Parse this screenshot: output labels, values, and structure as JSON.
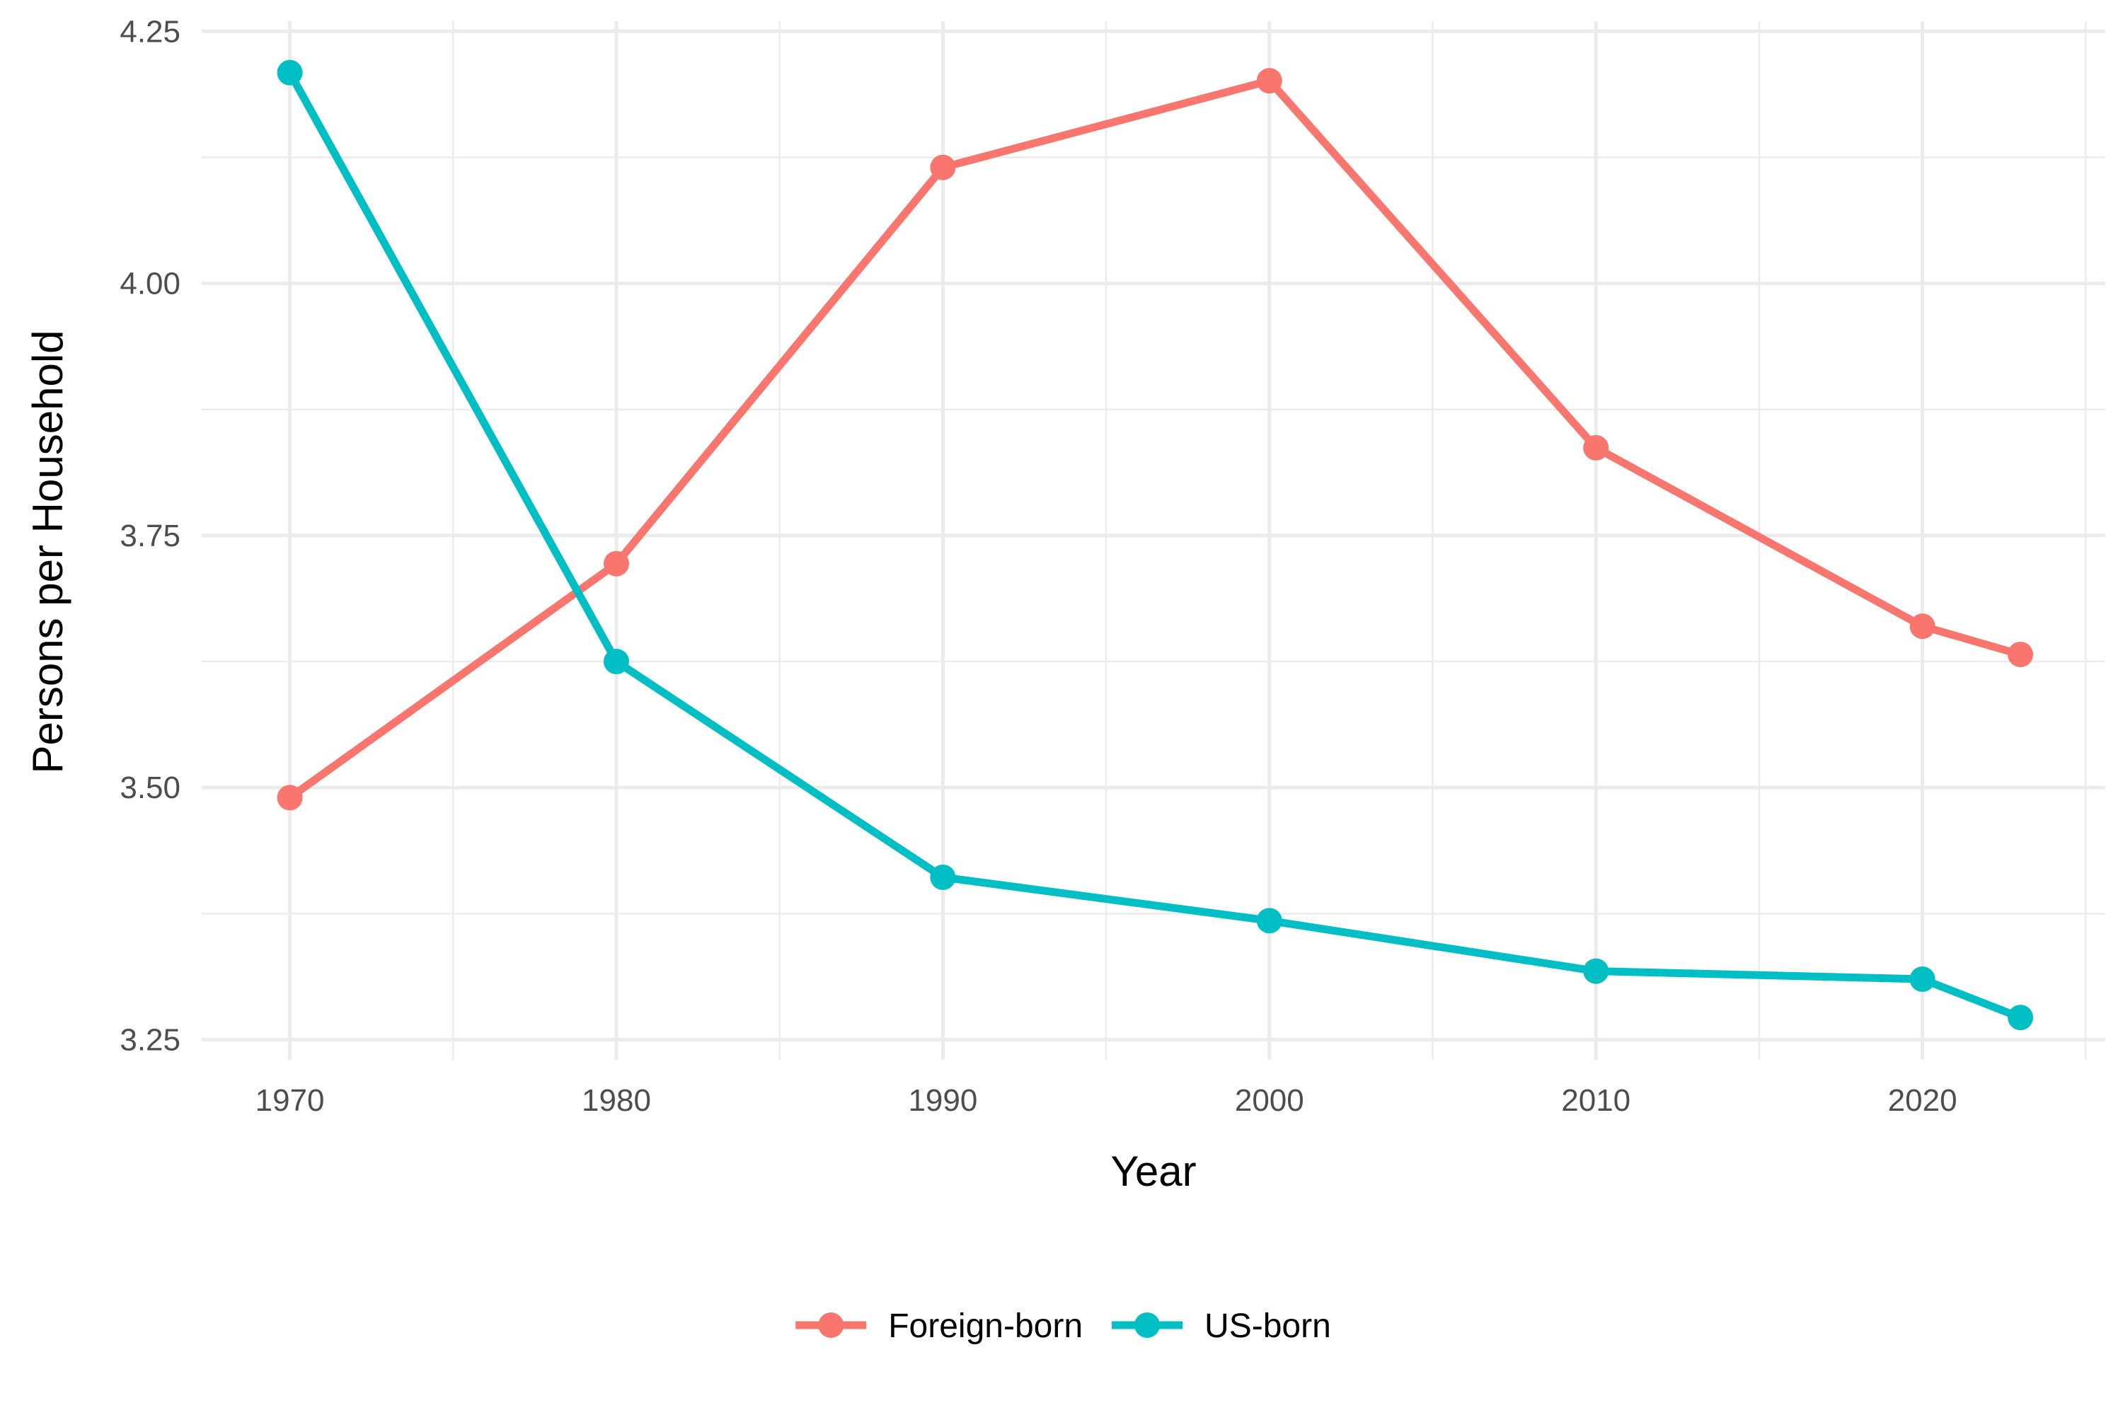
{
  "chart_data": {
    "type": "line",
    "title": "",
    "xlabel": "Year",
    "ylabel": "Persons per Household",
    "x": [
      1970,
      1980,
      1990,
      2000,
      2010,
      2020,
      2023
    ],
    "xlim": [
      1967.3,
      2025.6
    ],
    "ylim": [
      3.23,
      4.26
    ],
    "x_ticks": [
      1970,
      1980,
      1990,
      2000,
      2010,
      2020
    ],
    "x_tick_labels": [
      "1970",
      "1980",
      "1990",
      "2000",
      "2010",
      "2020"
    ],
    "x_minor_ticks": [
      1975,
      1985,
      1995,
      2005,
      2015,
      2025
    ],
    "y_ticks": [
      3.25,
      3.5,
      3.75,
      4.0,
      4.25
    ],
    "y_tick_labels": [
      "3.25",
      "3.50",
      "3.75",
      "4.00",
      "4.25"
    ],
    "y_minor_ticks": [
      3.375,
      3.625,
      3.875,
      4.125
    ],
    "grid": true,
    "legend_position": "bottom",
    "series": [
      {
        "name": "Foreign-born",
        "color": "#F8766D",
        "values": [
          3.49,
          3.722,
          4.115,
          4.201,
          3.837,
          3.66,
          3.632
        ]
      },
      {
        "name": "US-born",
        "color": "#00BFC4",
        "values": [
          4.209,
          3.625,
          3.411,
          3.368,
          3.318,
          3.31,
          3.272
        ]
      }
    ]
  }
}
